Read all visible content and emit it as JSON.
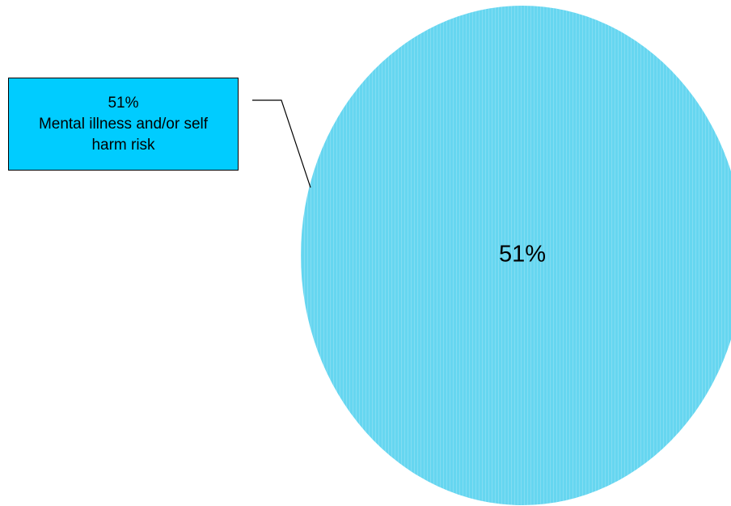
{
  "chart_data": {
    "type": "pie",
    "categories": [
      "Mental illness and/or self harm risk"
    ],
    "values": [
      51
    ],
    "value_labels": [
      "51%"
    ],
    "color": "#66d6f0",
    "label_box_color": "#00ccff"
  }
}
